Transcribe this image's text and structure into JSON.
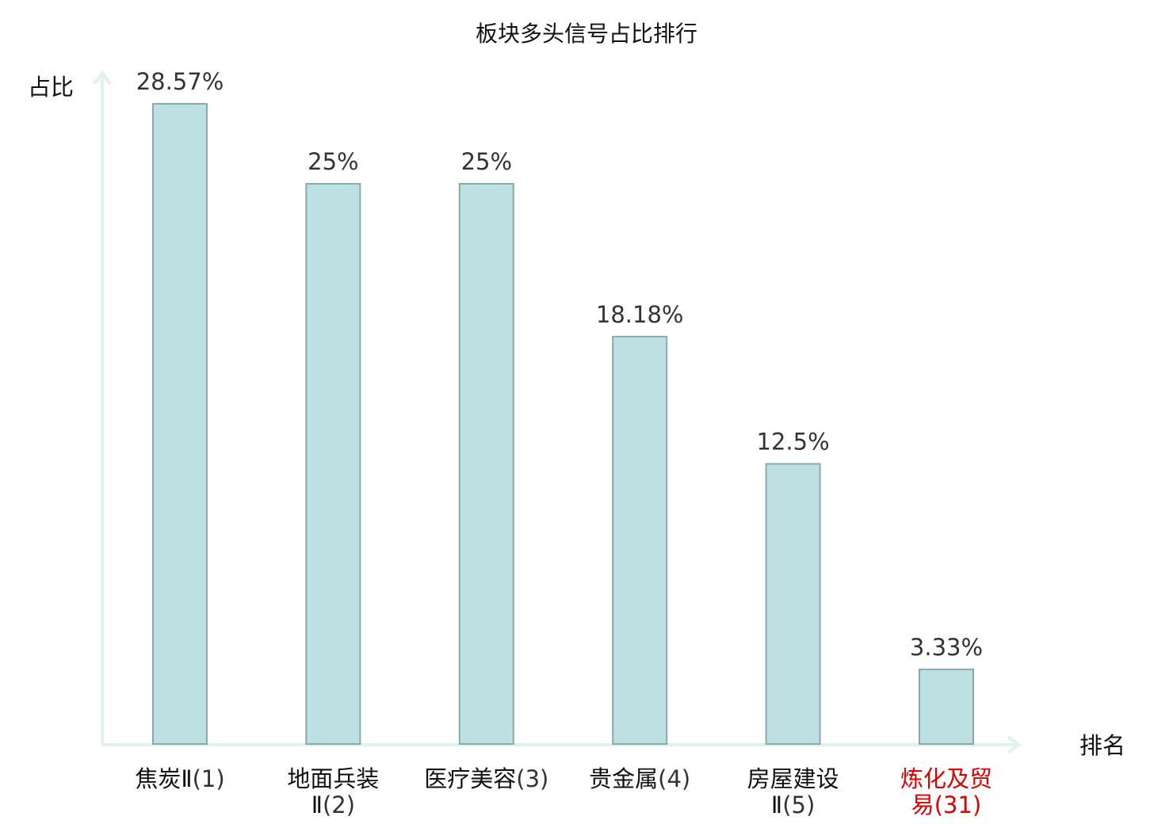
{
  "chart_data": {
    "type": "bar",
    "title": "板块多头信号占比排行",
    "ylabel": "占比",
    "xlabel": "排名",
    "ylim": [
      0,
      30
    ],
    "grid": false,
    "categories": [
      {
        "name_lines": [
          "焦炭Ⅱ"
        ],
        "rank": "(1)",
        "highlight": false
      },
      {
        "name_lines": [
          "地面兵装",
          "Ⅱ"
        ],
        "rank": "(2)",
        "highlight": false
      },
      {
        "name_lines": [
          "医疗美容"
        ],
        "rank": "(3)",
        "highlight": false
      },
      {
        "name_lines": [
          "贵金属"
        ],
        "rank": "(4)",
        "highlight": false
      },
      {
        "name_lines": [
          "房屋建设",
          "Ⅱ"
        ],
        "rank": "(5)",
        "highlight": false
      },
      {
        "name_lines": [
          "炼化及贸",
          "易"
        ],
        "rank": "(31)",
        "highlight": true
      }
    ],
    "values": [
      28.57,
      25,
      25,
      18.18,
      12.5,
      3.33
    ],
    "value_labels": [
      "28.57%",
      "25%",
      "25%",
      "18.18%",
      "12.5%",
      "3.33%"
    ],
    "colors": {
      "bar_fill": "#bde0e2",
      "bar_stroke": "#8aa9ab",
      "axis": "#dff1ef",
      "label_normal": "#111111",
      "rank_normal": "#333333",
      "highlight": "#e00000"
    }
  }
}
